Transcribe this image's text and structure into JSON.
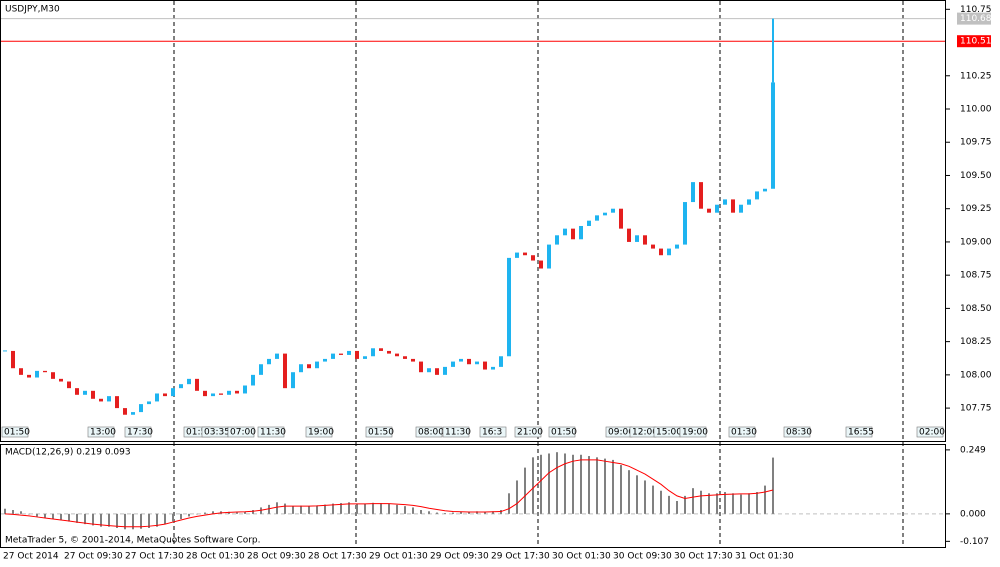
{
  "chart_data": [
    {
      "type": "candlestick",
      "title": "USDJPY,M30",
      "up_color": "#1eb4f0",
      "down_color": "#e41e1e",
      "ylim": [
        107.51,
        110.82
      ],
      "yticks": [
        107.75,
        108.0,
        108.25,
        108.5,
        108.75,
        109.0,
        109.25,
        109.5,
        109.75,
        110.0,
        110.25,
        110.75
      ],
      "ytick_labels": [
        "107.75",
        "108.00",
        "108.25",
        "108.50",
        "108.75",
        "109.00",
        "109.25",
        "109.50",
        "109.75",
        "110.00",
        "110.25",
        "110.75"
      ],
      "high_line": 110.68,
      "bid_line": 110.51,
      "closes": [
        108.18,
        108.05,
        108.0,
        107.98,
        108.03,
        108.02,
        107.97,
        107.95,
        107.9,
        107.85,
        107.88,
        107.82,
        107.8,
        107.84,
        107.75,
        107.7,
        107.72,
        107.78,
        107.8,
        107.86,
        107.84,
        107.9,
        107.93,
        107.97,
        107.88,
        107.84,
        107.86,
        107.85,
        107.88,
        107.86,
        107.92,
        108.0,
        108.08,
        108.12,
        108.16,
        107.9,
        108.02,
        108.08,
        108.05,
        108.1,
        108.12,
        108.16,
        108.15,
        108.18,
        108.12,
        108.14,
        108.2,
        108.18,
        108.16,
        108.14,
        108.12,
        108.1,
        108.02,
        108.05,
        108.0,
        108.06,
        108.1,
        108.12,
        108.08,
        108.1,
        108.04,
        108.06,
        108.14,
        108.88,
        108.92,
        108.9,
        108.86,
        108.8,
        108.98,
        109.05,
        109.1,
        109.02,
        109.12,
        109.16,
        109.2,
        109.22,
        109.25,
        109.1,
        109.0,
        109.05,
        108.98,
        108.95,
        108.9,
        108.95,
        108.98,
        109.3,
        109.45,
        109.25,
        109.22,
        109.28,
        109.32,
        109.22,
        109.28,
        109.32,
        109.38,
        109.4,
        110.2
      ],
      "session_tags": [
        "01:50",
        "13:00",
        "17:30",
        "01:50",
        "03:35",
        "07:00",
        "11:30",
        "19:00",
        "01:50",
        "08:00",
        "11:30",
        "16:3",
        "21:00",
        "01:50",
        "09:00",
        "12:00",
        "15:00",
        "19:00",
        "01:30",
        "08:30",
        "16:55",
        "02:00"
      ],
      "x_labels": [
        "27 Oct 2014",
        "27 Oct 09:30",
        "27 Oct 17:30",
        "28 Oct 01:30",
        "28 Oct 09:30",
        "28 Oct 17:30",
        "29 Oct 01:30",
        "29 Oct 09:30",
        "29 Oct 17:30",
        "30 Oct 01:30",
        "30 Oct 09:30",
        "30 Oct 17:30",
        "31 Oct 01:30"
      ]
    },
    {
      "type": "macd",
      "title": "MACD(12,26,9) 0.219 0.093",
      "footer": "MetaTrader 5, © 2001-2014, MetaQuotes Software Corp.",
      "ylim": [
        -0.129,
        0.268
      ],
      "yticks": [
        -0.107,
        {
          "value": 0,
          "label": "0.000"
        },
        0.249
      ],
      "series": [
        {
          "name": "MACD",
          "color": "#808080",
          "values": [
            0.02,
            0.015,
            0.01,
            0.0,
            -0.01,
            -0.015,
            -0.02,
            -0.025,
            -0.03,
            -0.035,
            -0.04,
            -0.045,
            -0.05,
            -0.05,
            -0.055,
            -0.06,
            -0.06,
            -0.058,
            -0.055,
            -0.05,
            -0.04,
            -0.03,
            -0.02,
            -0.01,
            0.0,
            0.005,
            0.01,
            0.01,
            0.008,
            0.005,
            0.008,
            0.015,
            0.025,
            0.035,
            0.045,
            0.04,
            0.03,
            0.032,
            0.03,
            0.033,
            0.036,
            0.04,
            0.042,
            0.045,
            0.04,
            0.04,
            0.043,
            0.042,
            0.04,
            0.035,
            0.03,
            0.025,
            0.015,
            0.01,
            0.005,
            0.003,
            0.005,
            0.008,
            0.008,
            0.01,
            0.008,
            0.01,
            0.015,
            0.08,
            0.13,
            0.18,
            0.22,
            0.23,
            0.235,
            0.24,
            0.235,
            0.23,
            0.23,
            0.225,
            0.22,
            0.215,
            0.21,
            0.19,
            0.17,
            0.15,
            0.13,
            0.11,
            0.09,
            0.07,
            0.05,
            0.07,
            0.1,
            0.09,
            0.08,
            0.08,
            0.085,
            0.08,
            0.075,
            0.08,
            0.085,
            0.11,
            0.219
          ]
        },
        {
          "name": "Signal",
          "color": "#ff0000",
          "values": [
            0.0,
            -0.002,
            -0.005,
            -0.008,
            -0.012,
            -0.016,
            -0.02,
            -0.024,
            -0.028,
            -0.032,
            -0.036,
            -0.04,
            -0.043,
            -0.046,
            -0.048,
            -0.05,
            -0.05,
            -0.05,
            -0.048,
            -0.045,
            -0.04,
            -0.032,
            -0.024,
            -0.016,
            -0.01,
            -0.005,
            0.0,
            0.004,
            0.006,
            0.007,
            0.008,
            0.01,
            0.014,
            0.02,
            0.026,
            0.03,
            0.03,
            0.03,
            0.03,
            0.031,
            0.033,
            0.035,
            0.037,
            0.039,
            0.039,
            0.039,
            0.04,
            0.04,
            0.04,
            0.038,
            0.036,
            0.033,
            0.028,
            0.022,
            0.017,
            0.012,
            0.009,
            0.008,
            0.007,
            0.007,
            0.007,
            0.008,
            0.009,
            0.02,
            0.04,
            0.07,
            0.1,
            0.13,
            0.16,
            0.18,
            0.195,
            0.205,
            0.21,
            0.21,
            0.21,
            0.205,
            0.2,
            0.195,
            0.185,
            0.17,
            0.155,
            0.135,
            0.115,
            0.09,
            0.07,
            0.06,
            0.065,
            0.07,
            0.072,
            0.074,
            0.076,
            0.077,
            0.078,
            0.078,
            0.08,
            0.085,
            0.093
          ]
        }
      ]
    }
  ]
}
